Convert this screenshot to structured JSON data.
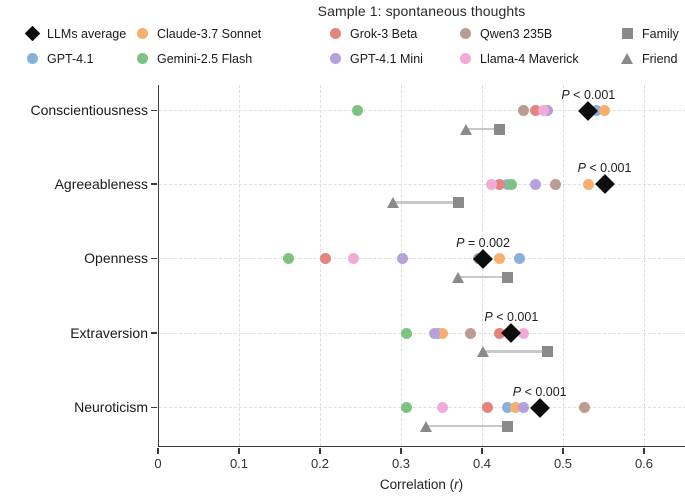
{
  "chart_data": {
    "type": "scatter",
    "title": "Sample 1: spontaneous thoughts",
    "xlabel": "Correlation (r)",
    "xlim": [
      0,
      0.65
    ],
    "grid": true,
    "xticks": [
      {
        "value": 0,
        "label": "0"
      },
      {
        "value": 0.1,
        "label": "0.1"
      },
      {
        "value": 0.2,
        "label": "0.2"
      },
      {
        "value": 0.3,
        "label": "0.3"
      },
      {
        "value": 0.4,
        "label": "0.4"
      },
      {
        "value": 0.5,
        "label": "0.5"
      },
      {
        "value": 0.6,
        "label": "0.6"
      }
    ],
    "grid_extra": [
      0.65
    ],
    "categories": [
      "Conscientiousness",
      "Agreeableness",
      "Openness",
      "Extraversion",
      "Neuroticism"
    ],
    "series": [
      {
        "name": "LLMs average",
        "marker": "diamond",
        "color": "#0d0d0d",
        "values": [
          0.53,
          0.55,
          0.4,
          0.435,
          0.47
        ]
      },
      {
        "name": "GPT-4.1",
        "marker": "circle",
        "color": "#87b1d9",
        "values": [
          0.54,
          0.43,
          0.445,
          0.345,
          0.43
        ]
      },
      {
        "name": "Claude-3.7 Sonnet",
        "marker": "circle",
        "color": "#f8ae6e",
        "values": [
          0.55,
          0.53,
          0.42,
          0.35,
          0.44
        ]
      },
      {
        "name": "Gemini-2.5 Flash",
        "marker": "circle",
        "color": "#7cc380",
        "values": [
          0.245,
          0.435,
          0.16,
          0.305,
          0.305
        ]
      },
      {
        "name": "Grok-3 Beta",
        "marker": "circle",
        "color": "#e5837d",
        "values": [
          0.465,
          0.42,
          0.205,
          0.42,
          0.405
        ]
      },
      {
        "name": "GPT-4.1 Mini",
        "marker": "circle",
        "color": "#b4a0de",
        "values": [
          0.48,
          0.465,
          0.3,
          0.34,
          0.45
        ]
      },
      {
        "name": "Qwen3 235B",
        "marker": "circle",
        "color": "#bc9b91",
        "values": [
          0.45,
          0.49,
          0.395,
          0.385,
          0.525
        ]
      },
      {
        "name": "Llama-4 Maverick",
        "marker": "circle",
        "color": "#f1abd8",
        "values": [
          0.475,
          0.41,
          0.24,
          0.45,
          0.35
        ]
      },
      {
        "name": "Family",
        "marker": "square",
        "color": "#8a8a8a",
        "values": [
          0.42,
          0.37,
          0.43,
          0.48,
          0.43
        ]
      },
      {
        "name": "Friend",
        "marker": "triangle",
        "color": "#8a8a8a",
        "values": [
          0.38,
          0.29,
          0.37,
          0.4,
          0.33
        ]
      }
    ],
    "p_labels": [
      "P < 0.001",
      "P < 0.001",
      "P = 0.002",
      "P < 0.001",
      "P < 0.001"
    ],
    "p_label_anchor_series": "LLMs average",
    "connector": {
      "between": [
        "Friend",
        "Family"
      ],
      "color": "#c8c8c8"
    },
    "legend_columns": [
      [
        "LLMs average",
        "GPT-4.1"
      ],
      [
        "Claude-3.7 Sonnet",
        "Gemini-2.5 Flash"
      ],
      [
        "Grok-3 Beta",
        "GPT-4.1 Mini"
      ],
      [
        "Qwen3 235B",
        "Llama-4 Maverick"
      ],
      [
        "Family",
        "Friend"
      ]
    ],
    "legend_position": "top"
  },
  "colors": {
    "axis": "#3a3a3a",
    "gridline": "#dedede",
    "connector": "#c8c8c8",
    "text": "#1a1a1a"
  }
}
